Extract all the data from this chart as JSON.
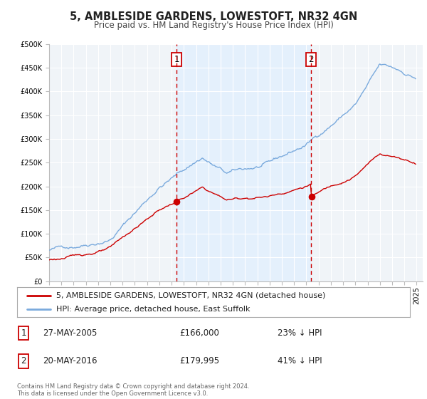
{
  "title": "5, AMBLESIDE GARDENS, LOWESTOFT, NR32 4GN",
  "subtitle": "Price paid vs. HM Land Registry's House Price Index (HPI)",
  "ylim": [
    0,
    500000
  ],
  "yticks": [
    0,
    50000,
    100000,
    150000,
    200000,
    250000,
    300000,
    350000,
    400000,
    450000,
    500000
  ],
  "ytick_labels": [
    "£0",
    "£50K",
    "£100K",
    "£150K",
    "£200K",
    "£250K",
    "£300K",
    "£350K",
    "£400K",
    "£450K",
    "£500K"
  ],
  "xlim_start": 1995.0,
  "xlim_end": 2025.5,
  "xticks": [
    1995,
    1996,
    1997,
    1998,
    1999,
    2000,
    2001,
    2002,
    2003,
    2004,
    2005,
    2006,
    2007,
    2008,
    2009,
    2010,
    2011,
    2012,
    2013,
    2014,
    2015,
    2016,
    2017,
    2018,
    2019,
    2020,
    2021,
    2022,
    2023,
    2024,
    2025
  ],
  "hpi_color": "#7aaadd",
  "price_color": "#cc0000",
  "vline_color": "#cc0000",
  "shade_color": "#ddeeff",
  "bg_color": "#f0f4f8",
  "grid_color": "#ffffff",
  "legend_label_price": "5, AMBLESIDE GARDENS, LOWESTOFT, NR32 4GN (detached house)",
  "legend_label_hpi": "HPI: Average price, detached house, East Suffolk",
  "event1_year": 2005.41,
  "event1_price": 166000,
  "event1_label": "1",
  "event1_date": "27-MAY-2005",
  "event1_price_str": "£166,000",
  "event1_pct": "23% ↓ HPI",
  "event2_year": 2016.39,
  "event2_price": 179995,
  "event2_label": "2",
  "event2_date": "20-MAY-2016",
  "event2_price_str": "£179,995",
  "event2_pct": "41% ↓ HPI",
  "footer_text": "Contains HM Land Registry data © Crown copyright and database right 2024.\nThis data is licensed under the Open Government Licence v3.0.",
  "title_fontsize": 10.5,
  "subtitle_fontsize": 8.5,
  "tick_fontsize": 7,
  "legend_fontsize": 8,
  "table_fontsize": 8.5
}
